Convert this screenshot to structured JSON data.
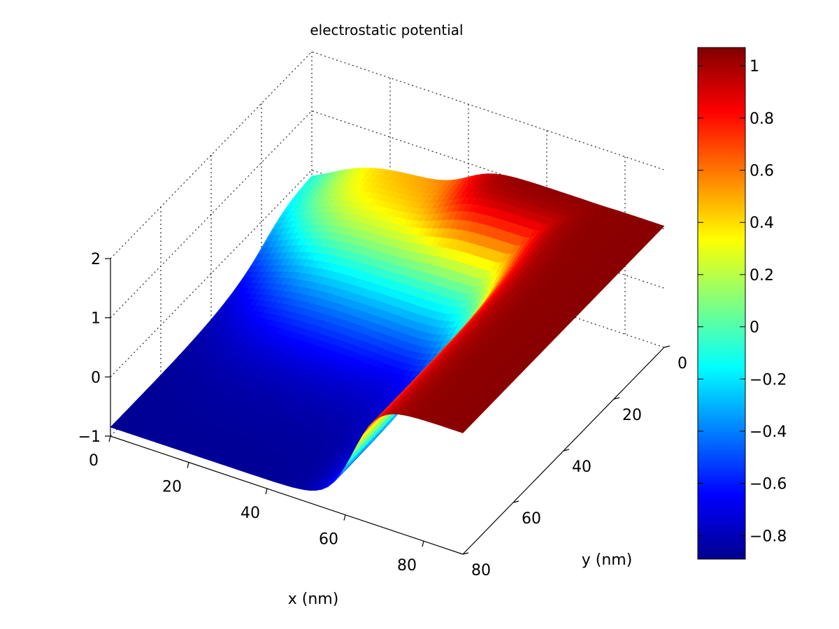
{
  "chart_data": {
    "type": "surface",
    "title": "electrostatic potential",
    "xlabel": "x (nm)",
    "ylabel": "y (nm)",
    "zlabel": "",
    "xlim": [
      0,
      90
    ],
    "ylim": [
      0,
      80
    ],
    "zlim": [
      -1,
      2
    ],
    "x_ticks": [
      "0",
      "20",
      "40",
      "60",
      "80"
    ],
    "y_ticks": [
      "0",
      "20",
      "40",
      "60",
      "80"
    ],
    "z_ticks": [
      "2",
      "1",
      "0",
      "−1"
    ],
    "grid": true,
    "colormap": "jet",
    "colorbar": {
      "range": [
        -0.89,
        1.07
      ],
      "ticks": [
        {
          "value": 1.0,
          "label": "1"
        },
        {
          "value": 0.8,
          "label": "0.8"
        },
        {
          "value": 0.6,
          "label": "0.6"
        },
        {
          "value": 0.4,
          "label": "0.4"
        },
        {
          "value": 0.2,
          "label": "0.2"
        },
        {
          "value": 0.0,
          "label": "0"
        },
        {
          "value": -0.2,
          "label": "−0.2"
        },
        {
          "value": -0.4,
          "label": "−0.4"
        },
        {
          "value": -0.6,
          "label": "−0.6"
        },
        {
          "value": -0.8,
          "label": "−0.8"
        }
      ]
    },
    "surface_features": {
      "low_value": -0.85,
      "high_value": 1.05,
      "dip_value": -0.9,
      "dip_location": [
        50,
        38
      ]
    }
  }
}
